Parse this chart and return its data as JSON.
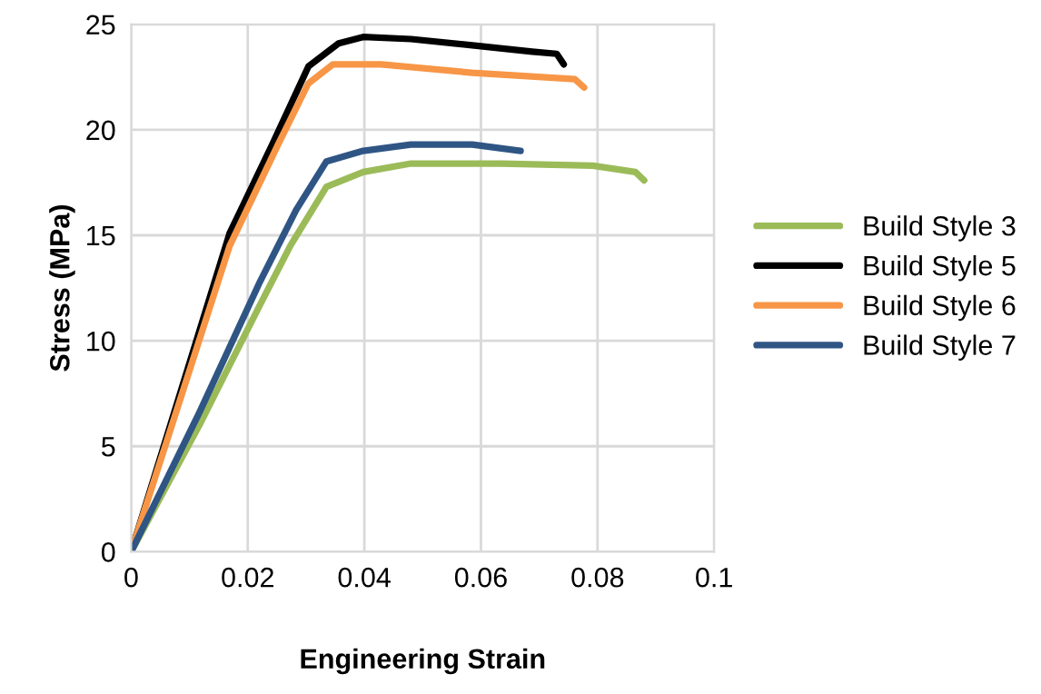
{
  "chart_data": {
    "type": "line",
    "xlabel": "Engineering Strain",
    "ylabel": "Stress (MPa)",
    "xlim": [
      0,
      0.1
    ],
    "ylim": [
      0,
      25
    ],
    "xticks": [
      0,
      0.02,
      0.04,
      0.06,
      0.08,
      0.1
    ],
    "yticks": [
      0,
      5,
      10,
      15,
      20,
      25
    ],
    "grid": true,
    "legend": "right",
    "marker": "none",
    "line_style": "solid",
    "series": [
      {
        "name": "Build Style 3",
        "color": "#9bbb59",
        "x": [
          0,
          0.0117,
          0.0221,
          0.0273,
          0.0335,
          0.0398,
          0.048,
          0.0636,
          0.0792,
          0.0865,
          0.088
        ],
        "values": [
          0,
          6.0,
          11.7,
          14.5,
          17.3,
          18.0,
          18.4,
          18.4,
          18.3,
          18.0,
          17.6
        ]
      },
      {
        "name": "Build Style 5",
        "color": "#000000",
        "x": [
          0,
          0.0169,
          0.0242,
          0.0304,
          0.0356,
          0.0398,
          0.048,
          0.0585,
          0.0688,
          0.073,
          0.0742
        ],
        "values": [
          0,
          15.1,
          19.3,
          23.0,
          24.1,
          24.4,
          24.3,
          24.0,
          23.7,
          23.6,
          23.1
        ]
      },
      {
        "name": "Build Style 6",
        "color": "#f79646",
        "x": [
          0,
          0.0169,
          0.0252,
          0.0304,
          0.0346,
          0.0429,
          0.0585,
          0.0761,
          0.0777
        ],
        "values": [
          0,
          14.5,
          19.3,
          22.2,
          23.1,
          23.1,
          22.7,
          22.4,
          22.0
        ]
      },
      {
        "name": "Build Style 7",
        "color": "#2f5584",
        "x": [
          0,
          0.0117,
          0.0221,
          0.0283,
          0.0335,
          0.0398,
          0.048,
          0.0585,
          0.0668
        ],
        "values": [
          0,
          6.6,
          12.8,
          16.2,
          18.5,
          19.0,
          19.3,
          19.3,
          19.0
        ]
      }
    ]
  }
}
